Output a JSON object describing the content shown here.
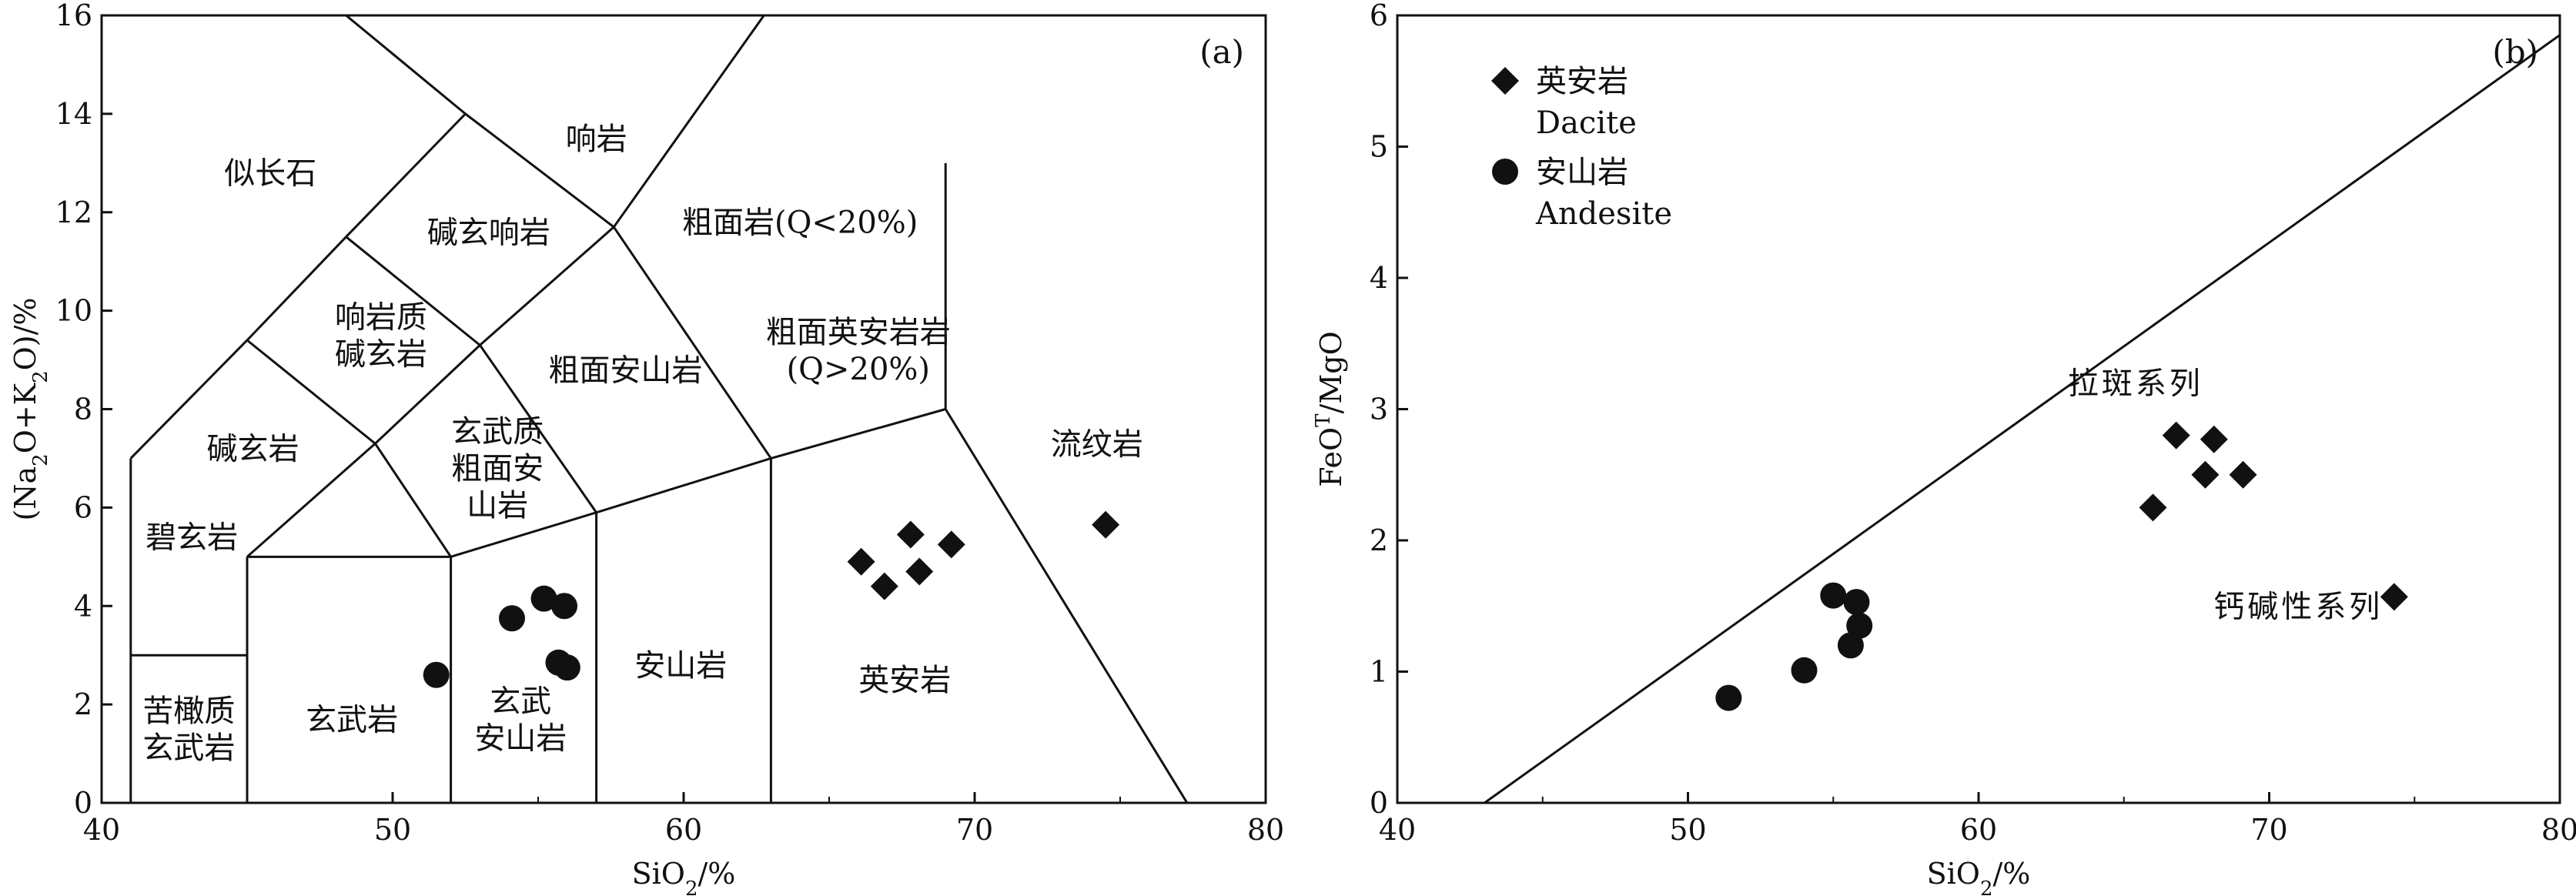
{
  "chart_data": [
    {
      "type": "scatter",
      "panel_label": "(a)",
      "xlabel": "SiO2/%",
      "ylabel": "(Na2O+K2O)/%",
      "xlim": [
        40,
        80
      ],
      "ylim": [
        0,
        16
      ],
      "xticks": [
        40,
        50,
        60,
        70,
        80
      ],
      "yticks": [
        0,
        2,
        4,
        6,
        8,
        10,
        12,
        14,
        16
      ],
      "field_boundaries": [
        [
          [
            41,
            0
          ],
          [
            41,
            7
          ]
        ],
        [
          [
            41,
            3
          ],
          [
            45,
            3
          ]
        ],
        [
          [
            45,
            0
          ],
          [
            45,
            5
          ]
        ],
        [
          [
            45,
            5
          ],
          [
            52,
            5
          ]
        ],
        [
          [
            52,
            5
          ],
          [
            57,
            5.9
          ]
        ],
        [
          [
            57,
            5.9
          ],
          [
            63,
            7
          ]
        ],
        [
          [
            63,
            7
          ],
          [
            69,
            8
          ]
        ],
        [
          [
            69,
            8
          ],
          [
            77.3,
            0
          ]
        ],
        [
          [
            52,
            0
          ],
          [
            52,
            5
          ]
        ],
        [
          [
            57,
            0
          ],
          [
            57,
            5.9
          ]
        ],
        [
          [
            63,
            0
          ],
          [
            63,
            7
          ]
        ],
        [
          [
            69,
            8
          ],
          [
            69,
            13
          ]
        ],
        [
          [
            41,
            7
          ],
          [
            45,
            9.4
          ]
        ],
        [
          [
            45,
            9.4
          ],
          [
            48.4,
            11.5
          ]
        ],
        [
          [
            48.4,
            11.5
          ],
          [
            52.5,
            14
          ]
        ],
        [
          [
            52.5,
            14
          ],
          [
            48.4,
            16
          ]
        ],
        [
          [
            52.5,
            14
          ],
          [
            57.6,
            11.7
          ]
        ],
        [
          [
            57.6,
            11.7
          ],
          [
            63,
            16.2
          ]
        ],
        [
          [
            45,
            9.4
          ],
          [
            49.4,
            7.3
          ]
        ],
        [
          [
            49.4,
            7.3
          ],
          [
            45,
            5
          ]
        ],
        [
          [
            49.4,
            7.3
          ],
          [
            53,
            9.3
          ]
        ],
        [
          [
            53,
            9.3
          ],
          [
            48.4,
            11.5
          ]
        ],
        [
          [
            49.4,
            7.3
          ],
          [
            52,
            5
          ]
        ],
        [
          [
            53,
            9.3
          ],
          [
            57,
            5.9
          ]
        ],
        [
          [
            53,
            9.3
          ],
          [
            57.6,
            11.7
          ]
        ],
        [
          [
            57.6,
            11.7
          ],
          [
            63,
            7
          ]
        ]
      ],
      "field_labels": [
        {
          "lines": [
            "似长石"
          ],
          "x": 45.8,
          "y": 12.8
        },
        {
          "lines": [
            "响岩"
          ],
          "x": 57,
          "y": 13.5
        },
        {
          "lines": [
            "碱玄响岩"
          ],
          "x": 53.3,
          "y": 11.6
        },
        {
          "lines": [
            "粗面岩(Q<20%)"
          ],
          "x": 64,
          "y": 11.8
        },
        {
          "lines": [
            "响岩质",
            "碱玄岩"
          ],
          "x": 49.6,
          "y": 9.5
        },
        {
          "lines": [
            "粗面安山岩"
          ],
          "x": 58,
          "y": 8.8
        },
        {
          "lines": [
            "粗面英安岩岩",
            "(Q>20%)"
          ],
          "x": 66,
          "y": 9.2
        },
        {
          "lines": [
            "碱玄岩"
          ],
          "x": 45.2,
          "y": 7.2
        },
        {
          "lines": [
            "玄武质",
            "粗面安",
            "山岩"
          ],
          "x": 53.6,
          "y": 6.8
        },
        {
          "lines": [
            "流纹岩"
          ],
          "x": 74.2,
          "y": 7.3
        },
        {
          "lines": [
            "碧玄岩"
          ],
          "x": 43.1,
          "y": 5.4
        },
        {
          "lines": [
            "安山岩"
          ],
          "x": 59.9,
          "y": 2.8
        },
        {
          "lines": [
            "英安岩"
          ],
          "x": 67.6,
          "y": 2.5
        },
        {
          "lines": [
            "玄武岩"
          ],
          "x": 48.6,
          "y": 1.7
        },
        {
          "lines": [
            "玄武",
            "安山岩"
          ],
          "x": 54.4,
          "y": 1.7
        },
        {
          "lines": [
            "苦橄质",
            "玄武岩"
          ],
          "x": 43,
          "y": 1.5
        }
      ],
      "series": [
        {
          "name": "英安岩 Dacite",
          "marker": "diamond",
          "points": [
            [
              66.1,
              4.9
            ],
            [
              66.9,
              4.4
            ],
            [
              67.8,
              5.45
            ],
            [
              68.1,
              4.7
            ],
            [
              69.2,
              5.25
            ],
            [
              74.5,
              5.65
            ]
          ]
        },
        {
          "name": "安山岩 Andesite",
          "marker": "circle",
          "points": [
            [
              51.5,
              2.6
            ],
            [
              54.1,
              3.75
            ],
            [
              55.2,
              4.15
            ],
            [
              55.9,
              4.0
            ],
            [
              55.7,
              2.85
            ],
            [
              56.0,
              2.75
            ]
          ]
        }
      ]
    },
    {
      "type": "scatter",
      "panel_label": "(b)",
      "xlabel": "SiO2/%",
      "ylabel": "FeOT/MgO",
      "xlim": [
        40,
        80
      ],
      "ylim": [
        0,
        6
      ],
      "xticks": [
        40,
        50,
        60,
        70,
        80
      ],
      "yticks": [
        0,
        1,
        2,
        3,
        4,
        5,
        6
      ],
      "divider_line": [
        [
          43,
          0
        ],
        [
          80,
          5.85
        ]
      ],
      "region_labels": [
        {
          "text": "拉斑系列",
          "x": 65.4,
          "y": 3.2
        },
        {
          "text": "钙碱性系列",
          "x": 71,
          "y": 1.5
        }
      ],
      "legend": [
        {
          "marker": "diamond",
          "cn": "英安岩",
          "en": "Dacite"
        },
        {
          "marker": "circle",
          "cn": "安山岩",
          "en": "Andesite"
        }
      ],
      "series": [
        {
          "name": "英安岩 Dacite",
          "marker": "diamond",
          "points": [
            [
              66,
              2.25
            ],
            [
              66.8,
              2.8
            ],
            [
              67.8,
              2.5
            ],
            [
              68.1,
              2.77
            ],
            [
              69.1,
              2.5
            ],
            [
              74.3,
              1.57
            ]
          ]
        },
        {
          "name": "安山岩 Andesite",
          "marker": "circle",
          "points": [
            [
              51.4,
              0.8
            ],
            [
              54,
              1.01
            ],
            [
              55,
              1.58
            ],
            [
              55.8,
              1.53
            ],
            [
              55.6,
              1.2
            ],
            [
              55.9,
              1.35
            ]
          ]
        }
      ]
    }
  ]
}
